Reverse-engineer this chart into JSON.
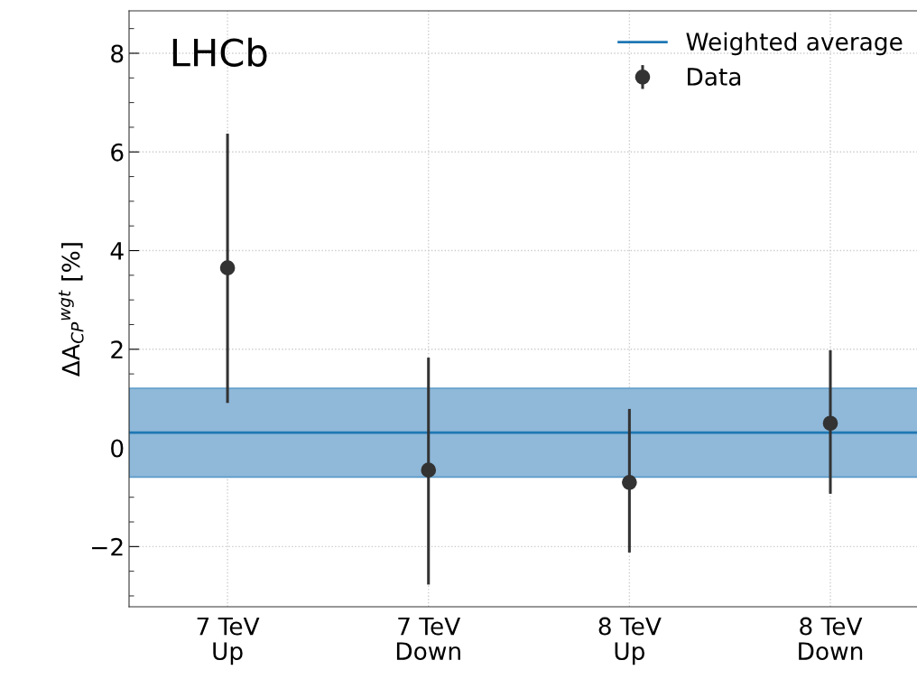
{
  "chart_data": {
    "type": "scatter",
    "ylabel": "ΔA$_{CP}$$^{wgt}$ [%]",
    "categories": [
      "7 TeV\nUp",
      "7 TeV\nDown",
      "8 TeV\nUp",
      "8 TeV\nDown"
    ],
    "series": [
      {
        "name": "Data",
        "color": "#333333",
        "marker": "circle",
        "values": [
          3.65,
          -0.45,
          -0.7,
          0.5
        ],
        "errors": [
          [
            0.91,
            6.37
          ],
          [
            -2.77,
            1.83
          ],
          [
            -2.12,
            0.79
          ],
          [
            -0.93,
            1.98
          ]
        ]
      }
    ],
    "ref_lines": [
      {
        "axis": "y",
        "value": 0.31,
        "label": "Weighted average",
        "color": "#1f77b4",
        "line_style": "solid"
      }
    ],
    "bands": [
      {
        "axis": "y",
        "from": -0.59,
        "to": 1.21,
        "color": "#8fb8d9"
      }
    ],
    "ylim": [
      -3.22,
      8.86
    ],
    "yticks": [
      {
        "value": -2,
        "label": "−2"
      },
      0,
      2,
      4,
      6,
      8
    ],
    "annotations": [
      "LHCb"
    ],
    "grid": true,
    "legend": "top right"
  }
}
